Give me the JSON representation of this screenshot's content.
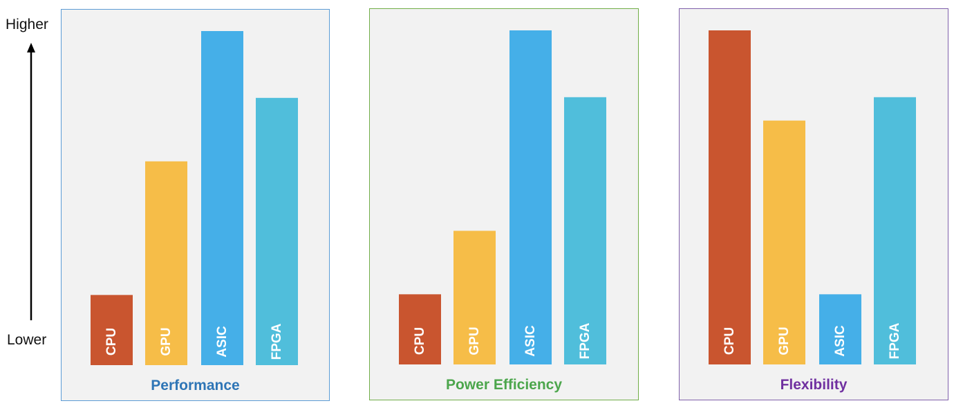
{
  "axis": {
    "high_label": "Higher",
    "low_label": "Lower"
  },
  "colors": {
    "CPU": "#c9552f",
    "GPU": "#f6bd48",
    "ASIC": "#45afe8",
    "FPGA": "#50bedb",
    "label_text": "#ffffff",
    "panel_background": "#f2f2f2"
  },
  "panels": [
    {
      "title": "Performance",
      "title_color": "#2e75b6",
      "border_color": "#5b9bd5"
    },
    {
      "title": "Power Efficiency",
      "title_color": "#4ca64c",
      "border_color": "#70ad47"
    },
    {
      "title": "Flexibility",
      "title_color": "#7030a0",
      "border_color": "#7f5faa"
    }
  ],
  "chart_data": [
    {
      "type": "bar",
      "title": "Performance",
      "categories": [
        "CPU",
        "GPU",
        "ASIC",
        "FPGA"
      ],
      "values": [
        21,
        61,
        100,
        80
      ],
      "ylim": [
        0,
        100
      ],
      "y_scale_labels": [
        "Lower",
        "Higher"
      ],
      "grid": false
    },
    {
      "type": "bar",
      "title": "Power Efficiency",
      "categories": [
        "CPU",
        "GPU",
        "ASIC",
        "FPGA"
      ],
      "values": [
        21,
        40,
        100,
        80
      ],
      "ylim": [
        0,
        100
      ],
      "y_scale_labels": [
        "Lower",
        "Higher"
      ],
      "grid": false
    },
    {
      "type": "bar",
      "title": "Flexibility",
      "categories": [
        "CPU",
        "GPU",
        "ASIC",
        "FPGA"
      ],
      "values": [
        100,
        73,
        21,
        80
      ],
      "ylim": [
        0,
        100
      ],
      "y_scale_labels": [
        "Lower",
        "Higher"
      ],
      "grid": false
    }
  ]
}
